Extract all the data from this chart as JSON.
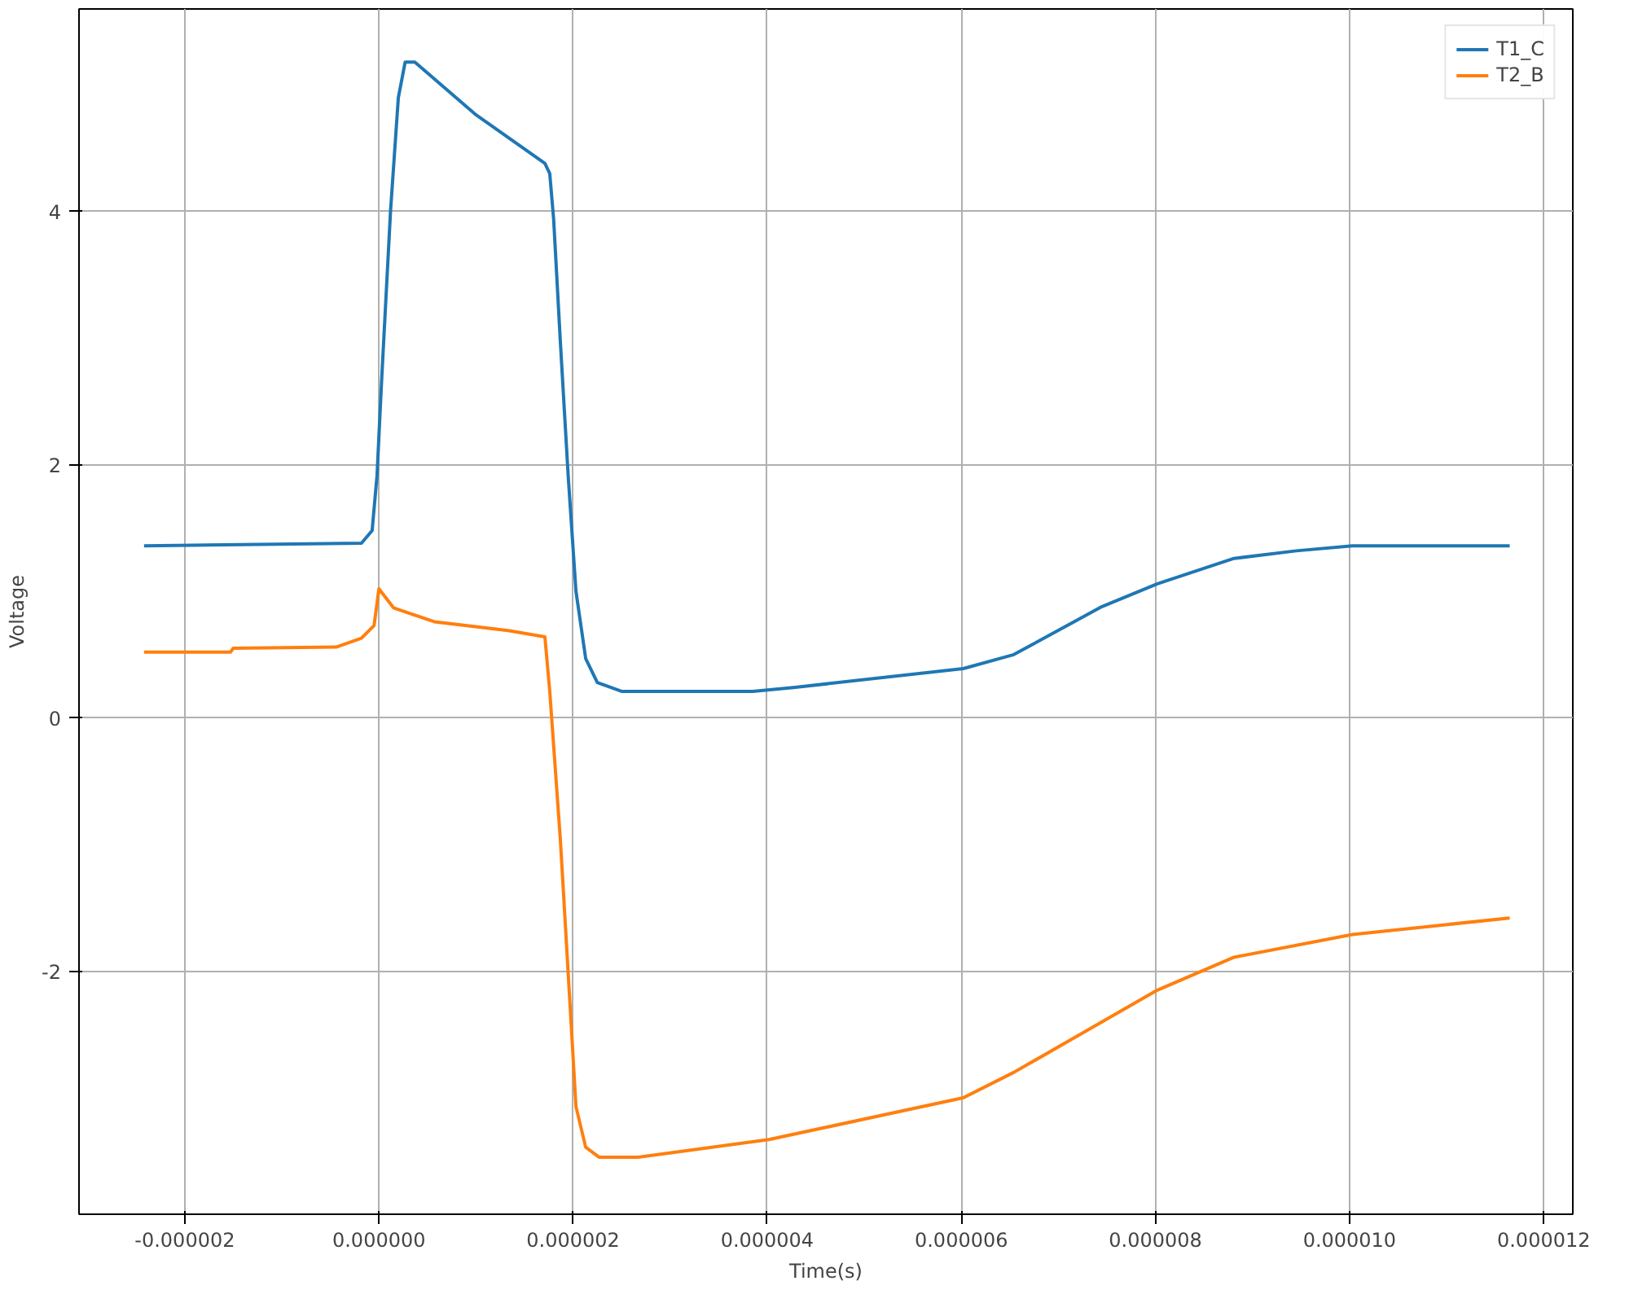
{
  "chart_data": {
    "type": "line",
    "xlabel": "Time(s)",
    "ylabel": "Voltage",
    "xlim": [
      -3.09e-06,
      1.23e-05
    ],
    "ylim": [
      -3.92,
      5.6
    ],
    "xticks": [
      {
        "value": -2e-06,
        "label": "-0.000002"
      },
      {
        "value": 0,
        "label": "0.000000"
      },
      {
        "value": 2e-06,
        "label": "0.000002"
      },
      {
        "value": 4e-06,
        "label": "0.000004"
      },
      {
        "value": 6e-06,
        "label": "0.000006"
      },
      {
        "value": 8e-06,
        "label": "0.000008"
      },
      {
        "value": 1e-05,
        "label": "0.000010"
      },
      {
        "value": 1.2e-05,
        "label": "0.000012"
      }
    ],
    "yticks": [
      -2,
      0,
      2,
      4
    ],
    "grid": true,
    "legend": "top right",
    "series": [
      {
        "name": "T1_C",
        "color": "#1f77b4",
        "x": [
          -2.42e-06,
          -1.8e-07,
          -7e-08,
          -2e-08,
          3e-08,
          1.2e-07,
          2e-07,
          2.7e-07,
          3.7e-07,
          9.9e-07,
          1.71e-06,
          1.76e-06,
          1.8e-06,
          1.87e-06,
          1.95e-06,
          2.03e-06,
          2.13e-06,
          2.25e-06,
          2.5e-06,
          3.85e-06,
          4.27e-06,
          6.02e-06,
          6.54e-06,
          7.45e-06,
          8.02e-06,
          8.81e-06,
          9.45e-06,
          1.003e-05,
          1.165e-05
        ],
        "values": [
          1.36,
          1.38,
          1.48,
          1.91,
          2.7,
          4.01,
          4.9,
          5.18,
          5.18,
          4.77,
          4.38,
          4.3,
          3.94,
          2.96,
          1.91,
          1.0,
          0.47,
          0.28,
          0.21,
          0.21,
          0.24,
          0.39,
          0.5,
          0.88,
          1.06,
          1.26,
          1.32,
          1.36,
          1.36
        ]
      },
      {
        "name": "T2_B",
        "color": "#ff7f0e",
        "x": [
          -2.42e-06,
          -1.53e-06,
          -1.5e-06,
          -4.4e-07,
          -1.8e-07,
          -5e-08,
          0.0,
          5e-08,
          1.5e-07,
          5.7e-07,
          1.33e-06,
          1.71e-06,
          1.76e-06,
          1.87e-06,
          1.97e-06,
          2.03e-06,
          2.13e-06,
          2.27e-06,
          2.67e-06,
          4.02e-06,
          6.02e-06,
          6.54e-06,
          8.02e-06,
          8.81e-06,
          1.003e-05,
          1.165e-05
        ],
        "values": [
          0.52,
          0.52,
          0.55,
          0.56,
          0.63,
          0.73,
          1.02,
          0.97,
          0.87,
          0.76,
          0.69,
          0.64,
          0.21,
          -0.97,
          -2.28,
          -3.07,
          -3.39,
          -3.47,
          -3.47,
          -3.33,
          -3.0,
          -2.8,
          -2.15,
          -1.89,
          -1.71,
          -1.58
        ]
      }
    ]
  }
}
